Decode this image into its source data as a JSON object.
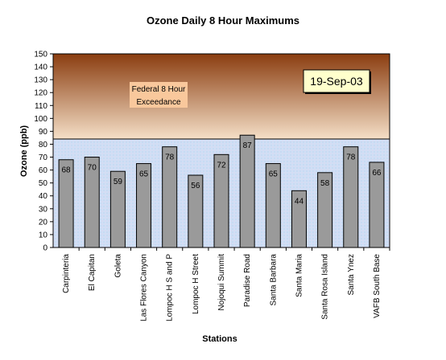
{
  "chart_data": {
    "type": "bar",
    "title": "Ozone Daily 8 Hour Maximums",
    "xlabel": "Stations",
    "ylabel": "Ozone (ppb)",
    "ylim": [
      0,
      150
    ],
    "ytick_step": 10,
    "yticks": [
      "0",
      "10",
      "20",
      "30",
      "40",
      "50",
      "60",
      "70",
      "80",
      "90",
      "100",
      "110",
      "120",
      "130",
      "140",
      "150"
    ],
    "categories": [
      "Carpinteria",
      "El Capitan",
      "Goleta",
      "Las Flores Canyon",
      "Lompoc H S and P",
      "Lompoc H Street",
      "Nojoqui Summit",
      "Paradise Road",
      "Santa Barbara",
      "Santa Maria",
      "Santa Rosa Island",
      "Santa Ynez",
      "VAFB South Base"
    ],
    "values": [
      68,
      70,
      59,
      65,
      78,
      56,
      72,
      87,
      65,
      44,
      58,
      78,
      66
    ],
    "value_labels": [
      "68",
      "70",
      "59",
      "65",
      "78",
      "56",
      "72",
      "87",
      "65",
      "44",
      "58",
      "78",
      "66"
    ],
    "threshold": 84,
    "threshold_label_line1": "Federal 8 Hour",
    "threshold_label_line2": "Exceedance",
    "date_label": "19-Sep-03",
    "colors": {
      "bar_fill": "#9a9a9a",
      "upper_band_dark": "#8a3d10",
      "upper_band_light": "#f5dfc7",
      "lower_band": "#cfe0f5",
      "date_box": "#ffffcc",
      "anno_box": "#f9c89c"
    }
  }
}
